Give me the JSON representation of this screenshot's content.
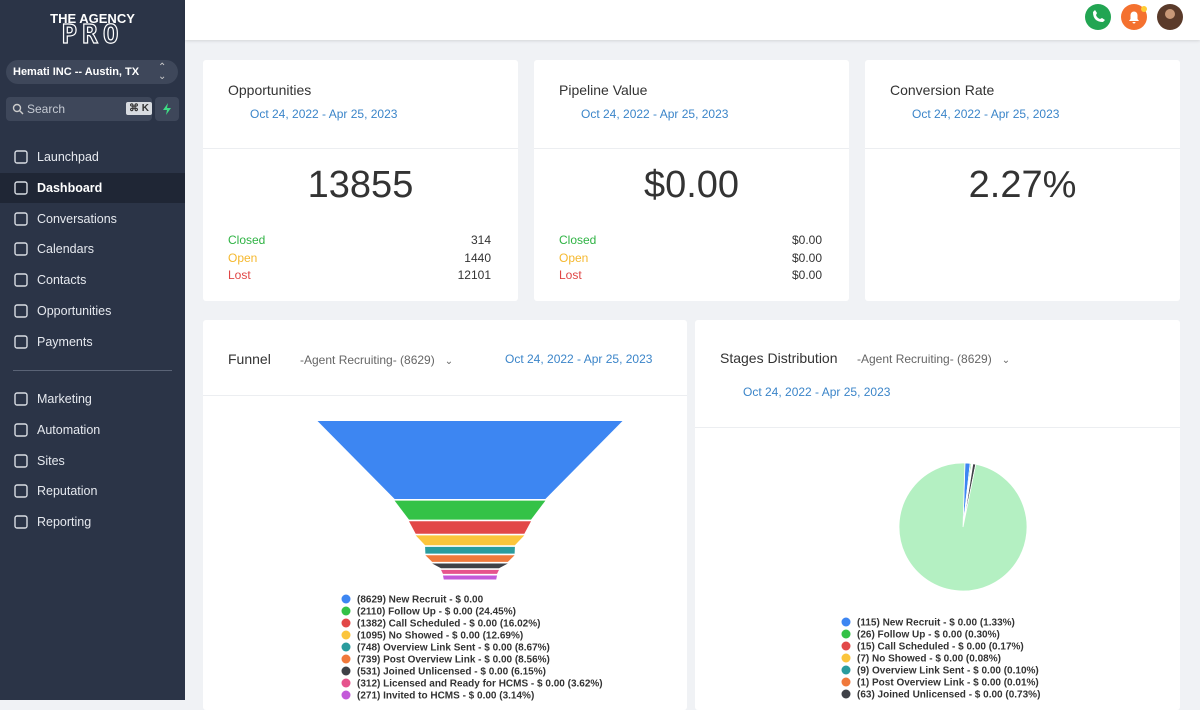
{
  "sidebar": {
    "brand": {
      "line1": "THE AGENCY",
      "line2": "PRO"
    },
    "location": "Hemati INC -- Austin, TX",
    "search": {
      "placeholder": "Search",
      "shortcut": "⌘ K"
    },
    "nav": [
      "Launchpad",
      "Dashboard",
      "Conversations",
      "Calendars",
      "Contacts",
      "Opportunities",
      "Payments"
    ],
    "active": "Dashboard",
    "nav2": [
      "Marketing",
      "Automation",
      "Sites",
      "Reputation",
      "Reporting"
    ]
  },
  "cards": [
    {
      "title": "Opportunities",
      "date": "Oct 24, 2022 - Apr 25, 2023",
      "value": 13855,
      "rows": [
        {
          "label": "Closed",
          "value": 314
        },
        {
          "label": "Open",
          "value": 1440
        },
        {
          "label": "Lost",
          "value": 12101
        }
      ]
    },
    {
      "title": "Pipeline Value",
      "date": "Oct 24, 2022 - Apr 25, 2023",
      "value": "$0.00",
      "rows": [
        {
          "label": "Closed",
          "value": "$0.00"
        },
        {
          "label": "Open",
          "value": "$0.00"
        },
        {
          "label": "Lost",
          "value": "$0.00"
        }
      ]
    },
    {
      "title": "Conversion Rate",
      "date": "Oct 24, 2022 - Apr 25, 2023",
      "value": "2.27%"
    }
  ],
  "funnel": {
    "title": "Funnel",
    "pipeline": "-Agent Recruiting- (8629)",
    "date": "Oct 24, 2022 - Apr 25, 2023",
    "stages": [
      {
        "label": "(8629) New Recruit - $ 0.00",
        "count": 8629,
        "color": "#3d86f2"
      },
      {
        "label": "(2110) Follow Up - $ 0.00 (24.45%)",
        "count": 2110,
        "color": "#34c247"
      },
      {
        "label": "(1382) Call Scheduled - $ 0.00 (16.02%)",
        "count": 1382,
        "color": "#e24848"
      },
      {
        "label": "(1095) No Showed - $ 0.00 (12.69%)",
        "count": 1095,
        "color": "#fbc53c"
      },
      {
        "label": "(748) Overview Link Sent - $ 0.00 (8.67%)",
        "count": 748,
        "color": "#2a9c9e"
      },
      {
        "label": "(739) Post Overview Link - $ 0.00 (8.56%)",
        "count": 739,
        "color": "#f0793b"
      },
      {
        "label": "(531) Joined Unlicensed - $ 0.00 (6.15%)",
        "count": 531,
        "color": "#3f4147"
      },
      {
        "label": "(312) Licensed and Ready for HCMS - $ 0.00 (3.62%)",
        "count": 312,
        "color": "#e6548d"
      },
      {
        "label": "(271) Invited to HCMS - $ 0.00 (3.14%)",
        "count": 271,
        "color": "#c35ad9"
      }
    ]
  },
  "pie": {
    "title": "Stages Distribution",
    "pipeline": "-Agent Recruiting- (8629)",
    "date": "Oct 24, 2022 - Apr 25, 2023",
    "slices": [
      {
        "label": "(115) New Recruit - $ 0.00 (1.33%)",
        "percent": 1.33,
        "color": "#3d86f2"
      },
      {
        "label": "(26) Follow Up - $ 0.00 (0.30%)",
        "percent": 0.3,
        "color": "#34c247"
      },
      {
        "label": "(15) Call Scheduled - $ 0.00 (0.17%)",
        "percent": 0.17,
        "color": "#e24848"
      },
      {
        "label": "(7) No Showed - $ 0.00 (0.08%)",
        "percent": 0.08,
        "color": "#fbc53c"
      },
      {
        "label": "(9) Overview Link Sent - $ 0.00 (0.10%)",
        "percent": 0.1,
        "color": "#2a9c9e"
      },
      {
        "label": "(1) Post Overview Link - $ 0.00 (0.01%)",
        "percent": 0.01,
        "color": "#f0793b"
      },
      {
        "label": "(63) Joined Unlicensed - $ 0.00 (0.73%)",
        "percent": 0.73,
        "color": "#3f4147"
      },
      {
        "label": null,
        "percent": 97.3,
        "color": "#b4f0c2"
      }
    ]
  }
}
